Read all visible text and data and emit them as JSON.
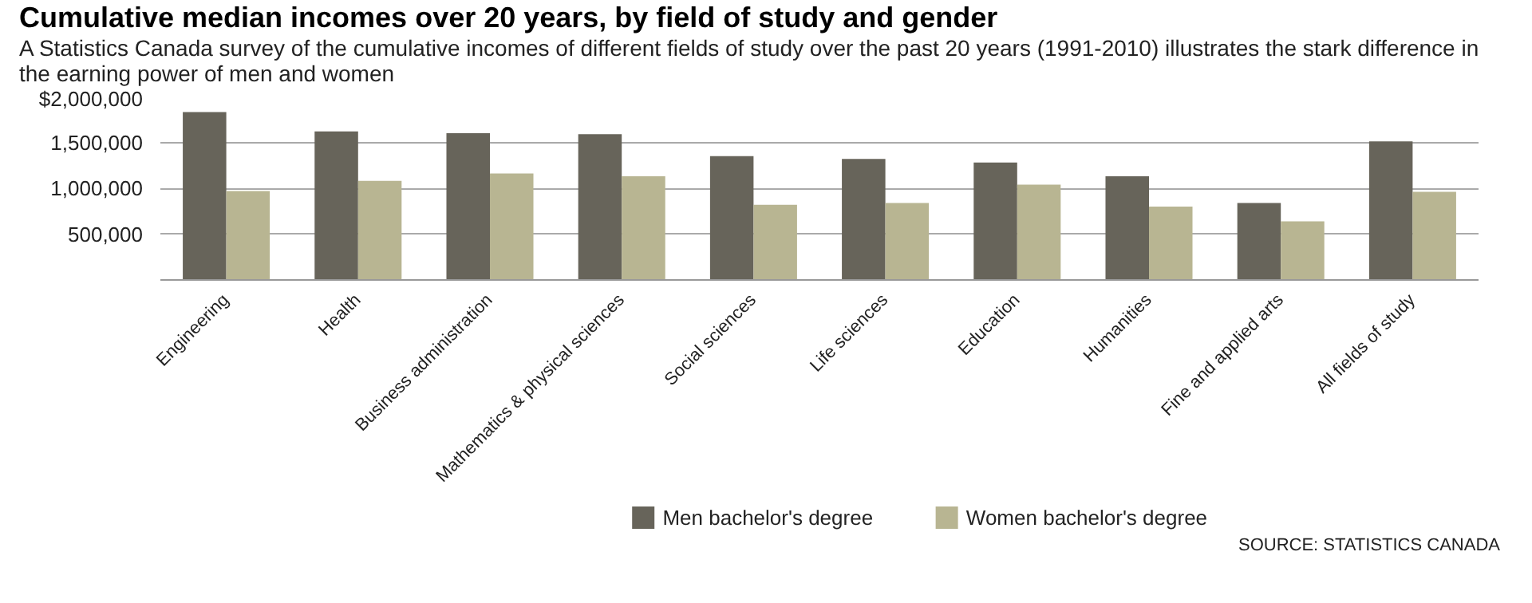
{
  "chart_data": {
    "type": "bar",
    "title": "Cumulative median incomes over 20 years, by field of study and gender",
    "subtitle": "A Statistics Canada survey of the cumulative incomes of different fields of study over the past 20 years (1991-2010) illustrates the stark difference in the earning power of men and women",
    "categories": [
      "Engineering",
      "Health",
      "Business administration",
      "Mathematics & physical sciences",
      "Social sciences",
      "Life sciences",
      "Education",
      "Humanities",
      "Fine and applied arts",
      "All fields of study"
    ],
    "series": [
      {
        "name": "Men bachelor's degree",
        "color": "#67645a",
        "values": [
          1830000,
          1620000,
          1600000,
          1590000,
          1350000,
          1320000,
          1280000,
          1130000,
          840000,
          1510000
        ]
      },
      {
        "name": "Women bachelor's degree",
        "color": "#b8b592",
        "values": [
          970000,
          1080000,
          1160000,
          1130000,
          820000,
          840000,
          1040000,
          800000,
          640000,
          960000
        ]
      }
    ],
    "ylim": [
      0,
      2000000
    ],
    "yticks": [
      {
        "value": 0,
        "label": null
      },
      {
        "value": 500000,
        "label": "500,000"
      },
      {
        "value": 1000000,
        "label": "1,000,000"
      },
      {
        "value": 1500000,
        "label": "1,500,000"
      },
      {
        "value": 2000000,
        "label": "$2,000,000"
      }
    ],
    "grid": "y",
    "legend": "bottom",
    "annotations": [
      "SOURCE: STATISTICS CANADA"
    ]
  }
}
